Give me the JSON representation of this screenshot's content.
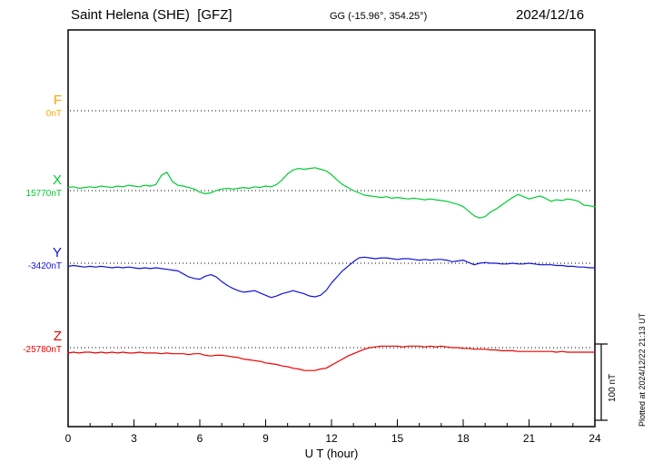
{
  "header": {
    "station_line": "Saint Helena (SHE)  [GFZ]",
    "coords": "GG (-15.96°, 354.25°)",
    "date": "2024/12/16"
  },
  "footer": {
    "plotted_note": "Plotted at 2024/12/22 21:13 UT"
  },
  "chart_data": {
    "type": "line",
    "title": "Saint Helena (SHE) [GFZ] magnetogram 2024/12/16",
    "xlabel": "U T (hour)",
    "x_range": [
      0,
      24
    ],
    "x_ticks": [
      0,
      3,
      6,
      9,
      12,
      15,
      18,
      21,
      24
    ],
    "x_minor_step": 1,
    "scale_bar_label": "100 nT",
    "scale_bar_nT": 100,
    "grid": "dotted horizontal baseline per trace",
    "legend_position": "left margin",
    "series": [
      {
        "name": "F",
        "baseline_label": "0nT",
        "baseline_nT": 0,
        "color": "#FFA500",
        "x_start": 0,
        "x_step": 0.25,
        "values": []
      },
      {
        "name": "X",
        "baseline_label": "15770nT",
        "baseline_nT": 15770,
        "color": "#00CC33",
        "x_start": 0,
        "x_step": 0.25,
        "values": [
          4,
          5,
          3,
          4,
          5,
          4,
          6,
          5,
          4,
          6,
          5,
          7,
          6,
          5,
          7,
          6,
          8,
          20,
          24,
          12,
          7,
          6,
          4,
          2,
          -2,
          -4,
          -3,
          0,
          2,
          3,
          2,
          3,
          4,
          3,
          5,
          4,
          6,
          5,
          8,
          14,
          22,
          27,
          29,
          28,
          29,
          30,
          28,
          26,
          21,
          14,
          8,
          4,
          0,
          -3,
          -6,
          -7,
          -8,
          -9,
          -8,
          -10,
          -9,
          -10,
          -11,
          -10,
          -11,
          -12,
          -11,
          -12,
          -13,
          -14,
          -16,
          -18,
          -21,
          -27,
          -33,
          -36,
          -34,
          -28,
          -24,
          -19,
          -14,
          -9,
          -5,
          -8,
          -11,
          -9,
          -7,
          -10,
          -14,
          -12,
          -13,
          -11,
          -12,
          -14,
          -19,
          -20,
          -21
        ]
      },
      {
        "name": "Y",
        "baseline_label": "-3420nT",
        "baseline_nT": -3420,
        "color": "#1111DD",
        "x_start": 0,
        "x_step": 0.25,
        "values": [
          -4,
          -3,
          -4,
          -5,
          -4,
          -5,
          -4,
          -5,
          -6,
          -5,
          -6,
          -5,
          -6,
          -7,
          -6,
          -7,
          -6,
          -7,
          -8,
          -9,
          -10,
          -14,
          -18,
          -20,
          -21,
          -17,
          -15,
          -18,
          -24,
          -29,
          -33,
          -36,
          -38,
          -37,
          -36,
          -39,
          -42,
          -45,
          -43,
          -40,
          -38,
          -36,
          -38,
          -40,
          -43,
          -44,
          -42,
          -36,
          -26,
          -18,
          -10,
          -4,
          2,
          7,
          8,
          7,
          6,
          7,
          7,
          6,
          5,
          6,
          6,
          5,
          4,
          5,
          4,
          5,
          5,
          4,
          2,
          3,
          4,
          1,
          -2,
          0,
          1,
          0,
          0,
          -1,
          -1,
          0,
          -1,
          -1,
          0,
          -1,
          -2,
          -2,
          -2,
          -3,
          -3,
          -4,
          -4,
          -5,
          -5,
          -6,
          -6
        ]
      },
      {
        "name": "Z",
        "baseline_label": "-25780nT",
        "baseline_nT": -25780,
        "color": "#EE0000",
        "x_start": 0,
        "x_step": 0.25,
        "values": [
          -7,
          -6,
          -7,
          -6,
          -6,
          -7,
          -6,
          -7,
          -6,
          -7,
          -6,
          -7,
          -7,
          -6,
          -7,
          -7,
          -7,
          -8,
          -7,
          -8,
          -8,
          -8,
          -9,
          -8,
          -8,
          -10,
          -11,
          -10,
          -10,
          -11,
          -12,
          -13,
          -15,
          -16,
          -17,
          -18,
          -20,
          -21,
          -22,
          -24,
          -25,
          -27,
          -28,
          -30,
          -30,
          -30,
          -28,
          -27,
          -23,
          -19,
          -15,
          -11,
          -8,
          -5,
          -2,
          0,
          1,
          2,
          2,
          2,
          2,
          1,
          2,
          2,
          2,
          1,
          2,
          1,
          2,
          1,
          0,
          0,
          -1,
          -1,
          -2,
          -2,
          -2,
          -3,
          -3,
          -4,
          -4,
          -4,
          -5,
          -5,
          -5,
          -5,
          -5,
          -5,
          -5,
          -6,
          -5,
          -6,
          -6,
          -6,
          -6,
          -6,
          -6
        ]
      }
    ]
  }
}
